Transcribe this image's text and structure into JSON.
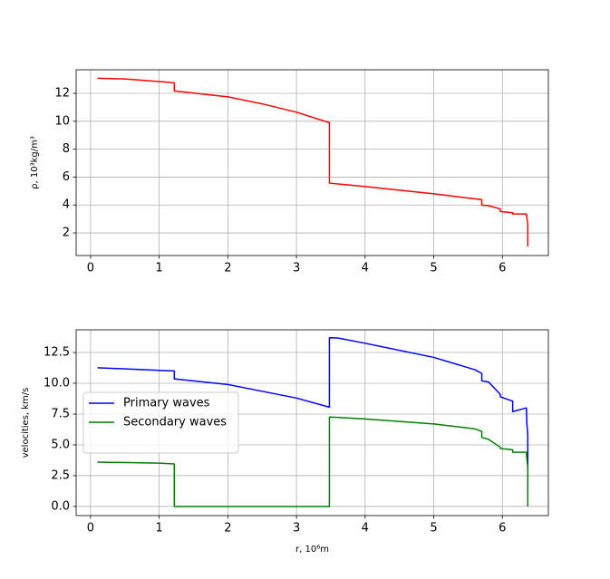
{
  "chart_data": [
    {
      "type": "line",
      "ylabel": "ρ, 10³kg/m³",
      "x": [
        0.1,
        0.5,
        1.0,
        1.22,
        1.22,
        2.0,
        2.5,
        3.0,
        3.48,
        3.48,
        4.0,
        5.0,
        5.7,
        5.7,
        5.8,
        5.97,
        5.97,
        6.15,
        6.15,
        6.35,
        6.37,
        6.37
      ],
      "series": [
        {
          "color": "#ff0000",
          "values": [
            13.08,
            13.03,
            12.85,
            12.76,
            12.17,
            11.75,
            11.25,
            10.65,
            9.9,
            5.57,
            5.32,
            4.8,
            4.38,
            3.99,
            3.95,
            3.72,
            3.54,
            3.45,
            3.36,
            3.36,
            2.6,
            1.02
          ]
        }
      ],
      "xlim": [
        -0.21,
        6.67
      ],
      "xticks": [
        0,
        1,
        2,
        3,
        4,
        5,
        6
      ],
      "ylim": [
        0.38,
        13.69
      ],
      "yticks": [
        2,
        4,
        6,
        8,
        10,
        12
      ],
      "grid": true
    },
    {
      "type": "line",
      "ylabel": "velocities, km/s",
      "xlabel": "r, 10⁶m",
      "x": [
        0.1,
        1.0,
        1.22,
        1.22,
        2.0,
        3.0,
        3.48,
        3.48,
        3.6,
        4.0,
        5.0,
        5.6,
        5.7,
        5.7,
        5.8,
        5.97,
        5.97,
        6.15,
        6.15,
        6.35,
        6.356,
        6.37,
        6.37
      ],
      "series": [
        {
          "name": "Primary waves",
          "color": "#0000ff",
          "values": [
            11.26,
            11.05,
            11.0,
            10.36,
            9.9,
            8.8,
            8.06,
            13.7,
            13.68,
            13.25,
            12.1,
            11.1,
            10.8,
            10.2,
            10.1,
            9.1,
            8.9,
            8.55,
            7.7,
            8.0,
            6.8,
            5.8,
            1.45
          ]
        },
        {
          "name": "Secondary waves",
          "color": "#008000",
          "values": [
            3.6,
            3.52,
            3.45,
            0,
            0,
            0,
            0,
            7.26,
            7.23,
            7.1,
            6.7,
            6.3,
            6.1,
            5.6,
            5.45,
            4.8,
            4.7,
            4.6,
            4.4,
            4.4,
            3.9,
            3.2,
            0
          ]
        }
      ],
      "xlim": [
        -0.21,
        6.67
      ],
      "xticks": [
        0,
        1,
        2,
        3,
        4,
        5,
        6
      ],
      "ylim": [
        -0.74,
        14.34
      ],
      "yticks": [
        {
          "value": 0,
          "label": "0.0"
        },
        2.5,
        {
          "value": 5,
          "label": "5.0"
        },
        7.5,
        {
          "value": 10,
          "label": "10.0"
        },
        12.5
      ],
      "grid": true,
      "legend": "center left"
    }
  ]
}
